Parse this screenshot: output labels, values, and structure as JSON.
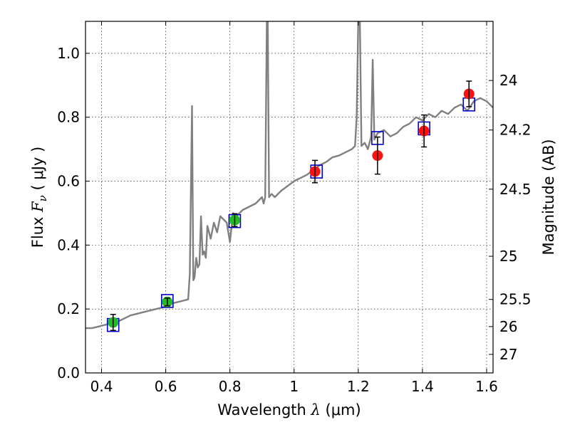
{
  "chart_data": {
    "type": "scatter",
    "title": "",
    "xlabel_prefix": "Wavelength  ",
    "xlabel_symbol": "λ",
    "xlabel_unit": " (μm)",
    "ylabel_prefix": "Flux  ",
    "ylabel_symbol": "F",
    "ylabel_subscript": "ν",
    "ylabel_unit": "  ( μJy )",
    "y2label": "Magnitude (AB)",
    "xlim": [
      0.35,
      1.62
    ],
    "ylim": [
      0.0,
      1.1
    ],
    "grid": true,
    "x_ticks": [
      {
        "value": 0.4,
        "label": "0.4"
      },
      {
        "value": 0.6,
        "label": "0.6"
      },
      {
        "value": 0.8,
        "label": "0.8"
      },
      {
        "value": 1.0,
        "label": "1"
      },
      {
        "value": 1.2,
        "label": "1.2"
      },
      {
        "value": 1.4,
        "label": "1.4"
      },
      {
        "value": 1.6,
        "label": "1.6"
      }
    ],
    "y_ticks": [
      {
        "value": 0.0,
        "label": "0.0"
      },
      {
        "value": 0.2,
        "label": "0.2"
      },
      {
        "value": 0.4,
        "label": "0.4"
      },
      {
        "value": 0.6,
        "label": "0.6"
      },
      {
        "value": 0.8,
        "label": "0.8"
      },
      {
        "value": 1.0,
        "label": "1.0"
      }
    ],
    "y2_ticks": [
      {
        "flux": 0.915,
        "label": "24"
      },
      {
        "flux": 0.76,
        "label": "24.2"
      },
      {
        "flux": 0.575,
        "label": "24.5"
      },
      {
        "flux": 0.365,
        "label": "25"
      },
      {
        "flux": 0.23,
        "label": "25.5"
      },
      {
        "flux": 0.145,
        "label": "26"
      },
      {
        "flux": 0.058,
        "label": "27"
      }
    ],
    "series": [
      {
        "name": "model_sed",
        "kind": "line",
        "color": "#808080",
        "x": [
          0.35,
          0.37,
          0.39,
          0.41,
          0.43,
          0.45,
          0.47,
          0.49,
          0.51,
          0.53,
          0.55,
          0.57,
          0.59,
          0.61,
          0.63,
          0.65,
          0.67,
          0.675,
          0.682,
          0.686,
          0.69,
          0.695,
          0.7,
          0.705,
          0.71,
          0.715,
          0.72,
          0.725,
          0.73,
          0.74,
          0.75,
          0.76,
          0.77,
          0.78,
          0.79,
          0.8,
          0.81,
          0.82,
          0.84,
          0.86,
          0.88,
          0.9,
          0.905,
          0.91,
          0.915,
          0.918,
          0.922,
          0.93,
          0.94,
          0.96,
          0.98,
          1.0,
          1.02,
          1.04,
          1.06,
          1.08,
          1.1,
          1.12,
          1.14,
          1.16,
          1.18,
          1.19,
          1.195,
          1.2,
          1.205,
          1.21,
          1.22,
          1.23,
          1.24,
          1.245,
          1.25,
          1.255,
          1.26,
          1.28,
          1.3,
          1.32,
          1.34,
          1.36,
          1.38,
          1.4,
          1.42,
          1.44,
          1.46,
          1.48,
          1.5,
          1.52,
          1.54,
          1.56,
          1.58,
          1.6,
          1.62
        ],
        "values": [
          0.14,
          0.14,
          0.145,
          0.15,
          0.155,
          0.16,
          0.17,
          0.18,
          0.185,
          0.19,
          0.195,
          0.2,
          0.205,
          0.215,
          0.22,
          0.225,
          0.23,
          0.31,
          0.835,
          0.29,
          0.3,
          0.36,
          0.33,
          0.34,
          0.49,
          0.37,
          0.38,
          0.36,
          0.46,
          0.42,
          0.47,
          0.44,
          0.49,
          0.48,
          0.47,
          0.41,
          0.5,
          0.49,
          0.51,
          0.52,
          0.53,
          0.55,
          0.53,
          0.55,
          1.1,
          1.1,
          0.55,
          0.56,
          0.55,
          0.57,
          0.585,
          0.6,
          0.61,
          0.62,
          0.635,
          0.65,
          0.66,
          0.675,
          0.68,
          0.69,
          0.7,
          0.71,
          0.8,
          1.1,
          1.1,
          0.71,
          0.72,
          0.7,
          0.74,
          0.98,
          0.73,
          0.74,
          0.75,
          0.76,
          0.74,
          0.75,
          0.77,
          0.78,
          0.8,
          0.79,
          0.81,
          0.8,
          0.82,
          0.81,
          0.83,
          0.84,
          0.82,
          0.85,
          0.86,
          0.85,
          0.83
        ]
      },
      {
        "name": "model_bandflux",
        "kind": "open-square",
        "color": "#0000cc",
        "x": [
          0.436,
          0.605,
          0.815,
          1.07,
          1.26,
          1.405,
          1.545
        ],
        "values": [
          0.15,
          0.225,
          0.475,
          0.63,
          0.735,
          0.765,
          0.84
        ]
      },
      {
        "name": "optical_photometry",
        "kind": "filled-circle",
        "color": "#22bb22",
        "x": [
          0.436,
          0.605,
          0.815
        ],
        "values": [
          0.158,
          0.222,
          0.478
        ],
        "errors": [
          0.025,
          0.012,
          0.02
        ]
      },
      {
        "name": "nir_photometry",
        "kind": "filled-circle",
        "color": "#ff1111",
        "x": [
          1.065,
          1.26,
          1.405,
          1.545
        ],
        "values": [
          0.63,
          0.68,
          0.757,
          0.873
        ],
        "errors": [
          0.035,
          0.058,
          0.05,
          0.04
        ]
      }
    ]
  }
}
